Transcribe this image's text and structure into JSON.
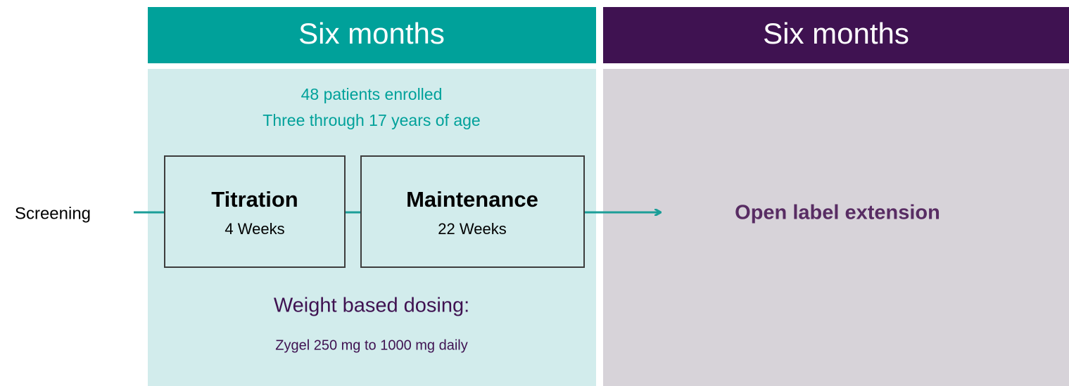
{
  "headers": [
    {
      "label": "Six months"
    },
    {
      "label": "Six months"
    }
  ],
  "enrollment": {
    "line1": "48 patients enrolled",
    "line2": "Three through 17 years of age"
  },
  "screening": "Screening",
  "phases": [
    {
      "title": "Titration",
      "duration": "4 Weeks"
    },
    {
      "title": "Maintenance",
      "duration": "22 Weeks"
    }
  ],
  "dosing": {
    "title": "Weight based dosing:",
    "detail": "Zygel 250 mg to 1000 mg daily"
  },
  "extension": "Open label extension"
}
